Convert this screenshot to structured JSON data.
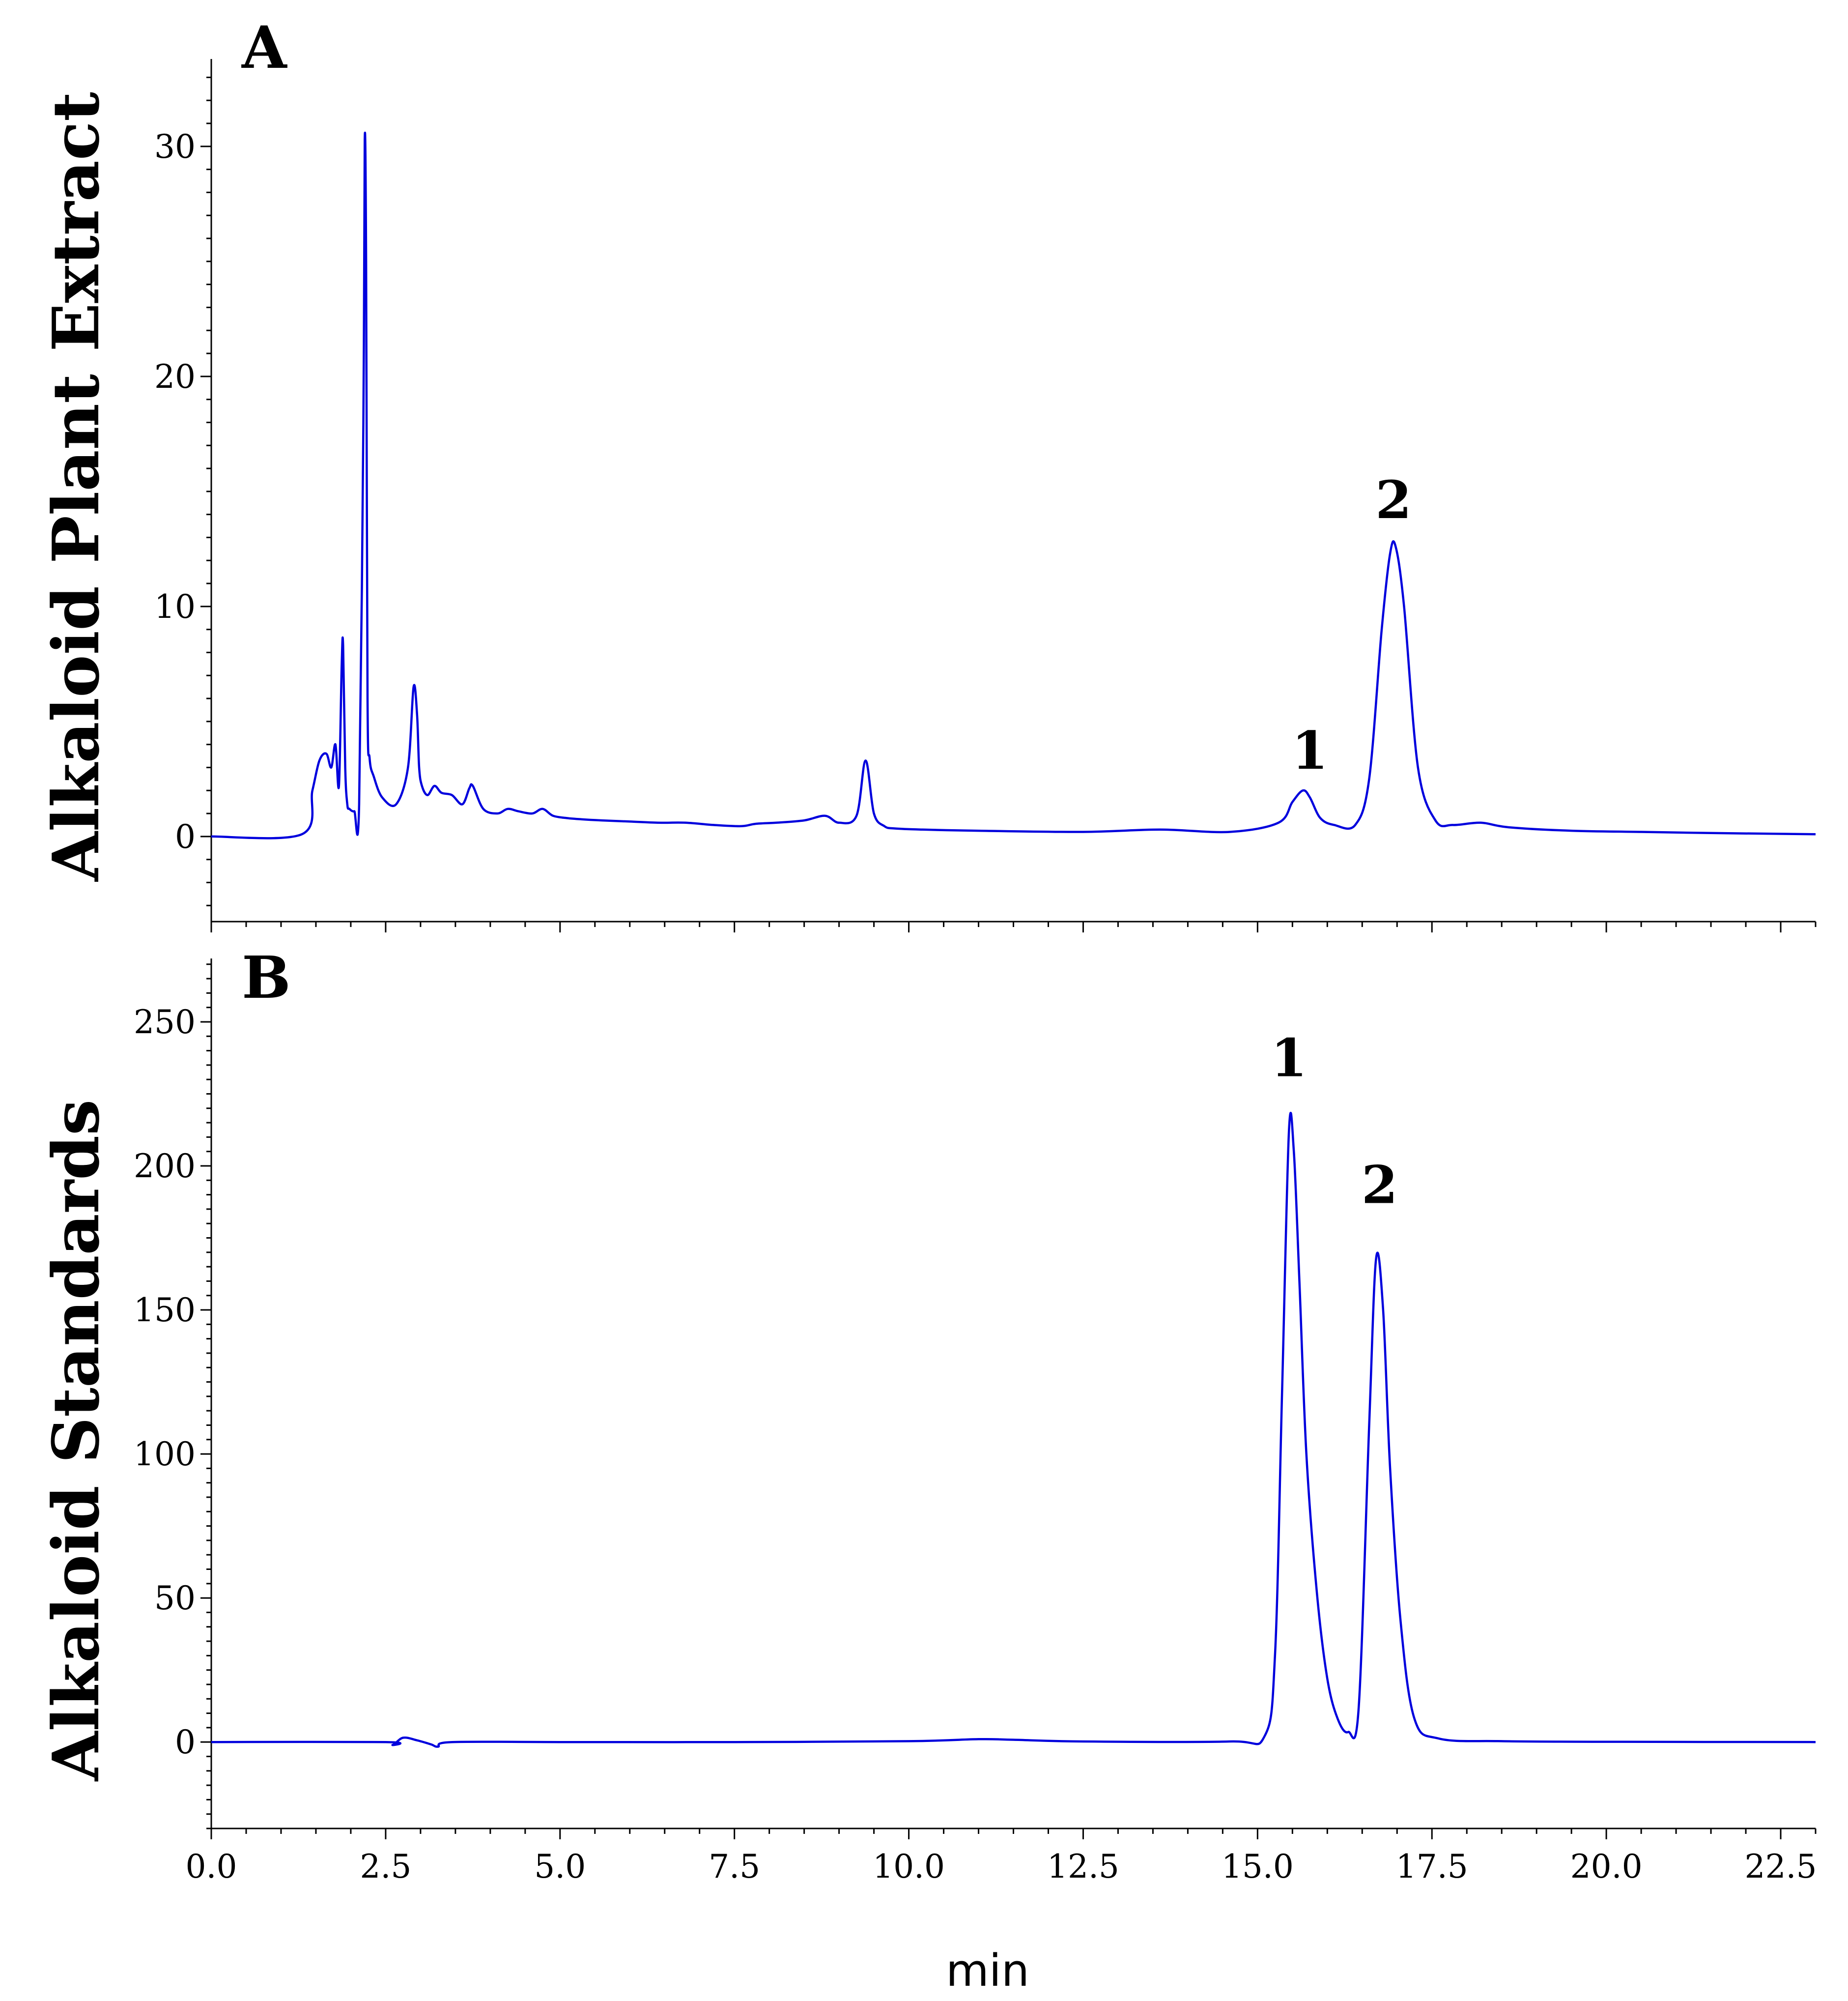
{
  "chart_data": [
    {
      "type": "line",
      "panel_label": "A",
      "ylabel": "Alkaloid Plant Extract",
      "xlim": [
        0,
        23.0
      ],
      "ylim": [
        -3.7,
        33.8
      ],
      "yticks": [
        0,
        10,
        20,
        30
      ],
      "ytick_labels": [
        "0",
        "10",
        "20",
        "30"
      ],
      "series_color": "#0000dd",
      "peak_labels": [
        {
          "text": "1",
          "x": 15.75,
          "y": 2.3
        },
        {
          "text": "2",
          "x": 16.95,
          "y": 13.2
        }
      ],
      "x": [
        0.0,
        1.3,
        1.45,
        1.55,
        1.65,
        1.72,
        1.78,
        1.83,
        1.87,
        1.89,
        1.92,
        1.95,
        1.98,
        2.05,
        2.12,
        2.18,
        2.2,
        2.22,
        2.24,
        2.27,
        2.33,
        2.45,
        2.65,
        2.82,
        2.9,
        2.95,
        2.98,
        3.02,
        3.1,
        3.2,
        3.3,
        3.45,
        3.6,
        3.7,
        3.75,
        3.9,
        4.1,
        4.25,
        4.4,
        4.6,
        4.75,
        4.9,
        5.1,
        5.3,
        5.6,
        6.0,
        6.4,
        6.8,
        7.2,
        7.6,
        7.8,
        8.1,
        8.5,
        8.8,
        9.0,
        9.25,
        9.38,
        9.5,
        9.65,
        9.8,
        10.2,
        11.0,
        12.5,
        13.6,
        14.6,
        15.3,
        15.5,
        15.65,
        15.75,
        15.9,
        16.1,
        16.4,
        16.6,
        16.78,
        16.9,
        16.98,
        17.1,
        17.3,
        17.55,
        17.8,
        18.2,
        18.6,
        19.5,
        20.5,
        21.5,
        23.0
      ],
      "y": [
        0.0,
        0.1,
        2.0,
        3.3,
        3.6,
        3.0,
        4.0,
        2.2,
        7.5,
        8.3,
        3.0,
        1.4,
        1.2,
        1.1,
        1.4,
        18.0,
        30.3,
        25.0,
        6.0,
        3.4,
        2.6,
        1.7,
        1.4,
        3.0,
        6.5,
        5.3,
        3.0,
        2.2,
        1.8,
        2.2,
        1.9,
        1.8,
        1.4,
        2.1,
        2.2,
        1.2,
        1.0,
        1.2,
        1.1,
        1.0,
        1.2,
        0.9,
        0.8,
        0.75,
        0.7,
        0.65,
        0.6,
        0.6,
        0.5,
        0.45,
        0.55,
        0.6,
        0.7,
        0.9,
        0.6,
        0.9,
        3.3,
        1.0,
        0.45,
        0.35,
        0.3,
        0.25,
        0.2,
        0.3,
        0.2,
        0.6,
        1.5,
        2.0,
        1.7,
        0.8,
        0.5,
        0.5,
        2.5,
        9.0,
        12.3,
        12.6,
        10.0,
        3.0,
        0.7,
        0.5,
        0.6,
        0.4,
        0.25,
        0.2,
        0.15,
        0.1
      ]
    },
    {
      "type": "line",
      "panel_label": "B",
      "ylabel": "Alkaloid Standards",
      "xlabel": "min",
      "xlim": [
        0,
        23.0
      ],
      "ylim": [
        -30,
        272
      ],
      "yticks": [
        0,
        50,
        100,
        150,
        200,
        250
      ],
      "ytick_labels": [
        "0",
        "50",
        "100",
        "150",
        "200",
        "250"
      ],
      "xticks": [
        0.0,
        2.5,
        5.0,
        7.5,
        10.0,
        12.5,
        15.0,
        17.5,
        20.0,
        22.5
      ],
      "xtick_labels": [
        "0.0",
        "2.5",
        "5.0",
        "7.5",
        "10.0",
        "12.5",
        "15.0",
        "17.5",
        "20.0",
        "22.5"
      ],
      "series_color": "#0000dd",
      "peak_labels": [
        {
          "text": "1",
          "x": 15.45,
          "y": 226
        },
        {
          "text": "2",
          "x": 16.75,
          "y": 182
        }
      ],
      "x": [
        0.0,
        2.5,
        2.6,
        2.75,
        2.95,
        3.15,
        3.25,
        3.45,
        5.0,
        7.5,
        10.0,
        11.0,
        11.5,
        12.5,
        14.6,
        15.1,
        15.25,
        15.35,
        15.45,
        15.52,
        15.6,
        15.7,
        15.85,
        16.0,
        16.15,
        16.3,
        16.45,
        16.6,
        16.7,
        16.8,
        16.9,
        17.05,
        17.25,
        17.6,
        18.5,
        20.0,
        23.0
      ],
      "y": [
        0.0,
        0.0,
        -1.0,
        1.5,
        0.6,
        -0.8,
        -1.6,
        0.0,
        0.0,
        0.0,
        0.3,
        1.0,
        0.8,
        0.2,
        0.2,
        2.0,
        30.0,
        120.0,
        212.0,
        205.0,
        160.0,
        100.0,
        52.0,
        22.0,
        8.0,
        3.5,
        12.0,
        110.0,
        168.0,
        150.0,
        95.0,
        42.0,
        8.0,
        1.2,
        0.3,
        0.1,
        0.0
      ]
    }
  ]
}
